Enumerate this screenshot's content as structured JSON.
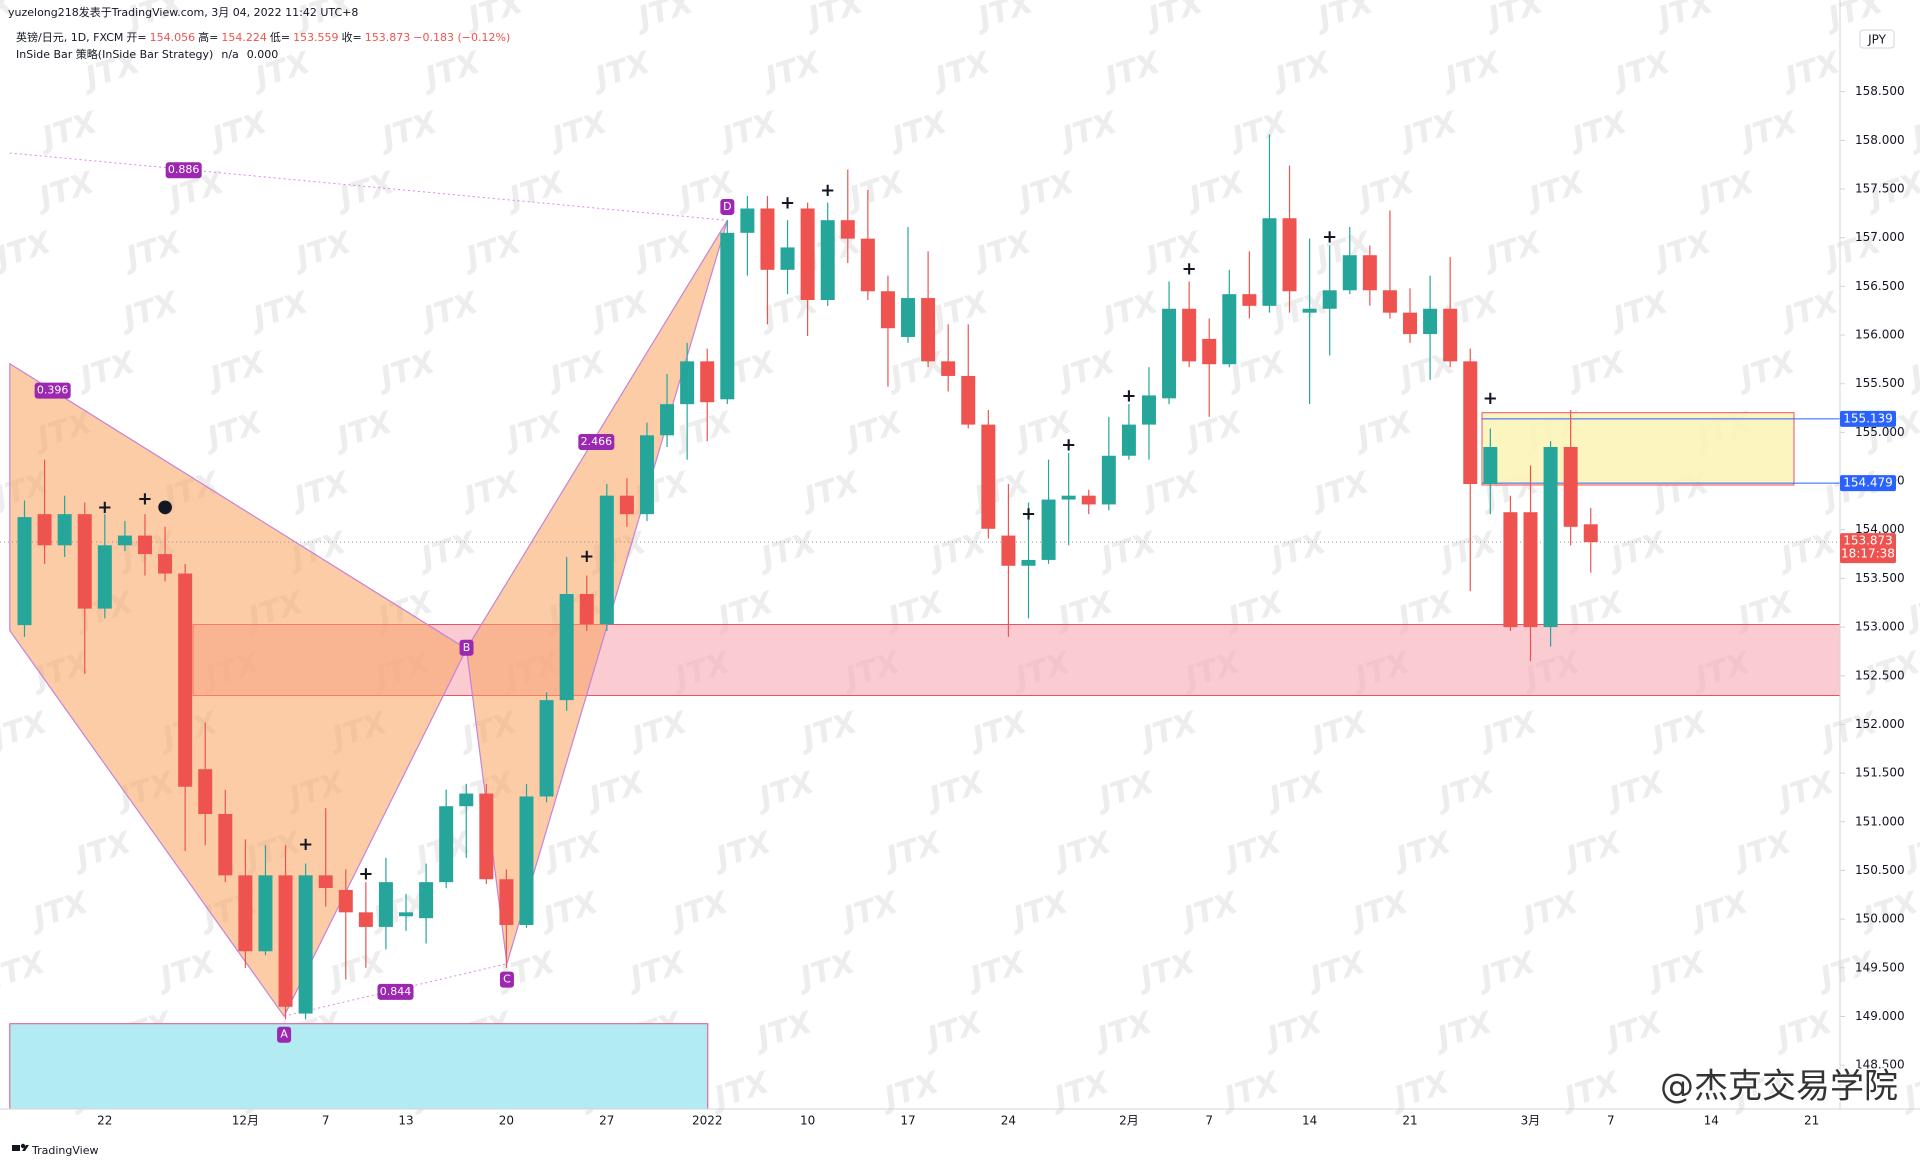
{
  "header": {
    "author_line": "yuzelong218发表于TradingView.com, 3月 04, 2022 11:42 UTC+8",
    "symbol": "英镑/日元, 1D, FXCM",
    "ohlc_labels": [
      "开=",
      "高=",
      "低=",
      "收="
    ],
    "change": "−0.183 (−0.12%)",
    "indicator": "InSide Bar 策略(InSide Bar Strategy)",
    "indicator_values": [
      "n/a",
      "0.000"
    ],
    "currency": "JPY"
  },
  "chart_data": {
    "type": "candlestick",
    "categories": [
      null,
      null,
      null,
      null,
      "22",
      null,
      null,
      null,
      null,
      null,
      null,
      "12月",
      null,
      null,
      null,
      "7",
      null,
      null,
      null,
      "13",
      null,
      null,
      null,
      null,
      "20",
      null,
      null,
      null,
      null,
      "27",
      null,
      null,
      null,
      null,
      "2022",
      null,
      null,
      null,
      null,
      "10",
      null,
      null,
      null,
      null,
      "17",
      null,
      null,
      null,
      null,
      "24",
      null,
      null,
      null,
      null,
      null,
      "2月",
      null,
      null,
      null,
      "7",
      null,
      null,
      null,
      null,
      "14",
      null,
      null,
      null,
      null,
      "21",
      null,
      null,
      null,
      null,
      null,
      "3月",
      null,
      null,
      null,
      "7",
      null,
      null,
      null,
      null,
      "14",
      null,
      null,
      null,
      null,
      "21"
    ],
    "open": [
      153.02,
      154.16,
      153.84,
      154.16,
      153.19,
      153.84,
      153.94,
      153.75,
      153.55,
      151.54,
      151.08,
      150.45,
      149.67,
      150.45,
      149.03,
      150.45,
      150.3,
      150.07,
      149.92,
      150.03,
      150.01,
      150.38,
      151.16,
      151.29,
      150.41,
      149.94,
      151.26,
      152.25,
      153.34,
      153.03,
      154.35,
      154.16,
      154.97,
      155.29,
      155.73,
      155.34,
      157.05,
      157.3,
      156.67,
      157.3,
      156.36,
      157.18,
      156.99,
      156.45,
      155.98,
      156.38,
      155.73,
      155.58,
      155.08,
      153.94,
      153.63,
      153.69,
      154.31,
      154.35,
      154.26,
      154.76,
      155.08,
      155.35,
      156.27,
      155.96,
      155.7,
      156.42,
      156.3,
      157.2,
      156.23,
      156.27,
      156.46,
      156.82,
      156.46,
      156.23,
      156.01,
      156.27,
      155.73,
      154.47,
      154.18,
      154.18,
      153.0,
      154.85,
      154.056,
      null,
      null,
      null,
      null,
      null,
      null,
      null,
      null,
      null,
      null,
      null
    ],
    "high": [
      154.3,
      154.72,
      154.35,
      154.28,
      154.16,
      154.09,
      154.16,
      154.03,
      153.65,
      152.02,
      151.33,
      150.82,
      150.76,
      150.76,
      150.57,
      151.14,
      150.51,
      150.38,
      150.63,
      150.26,
      150.57,
      151.33,
      151.39,
      151.39,
      150.51,
      151.39,
      152.33,
      153.72,
      153.53,
      154.47,
      154.53,
      155.1,
      155.6,
      155.92,
      155.86,
      157.18,
      157.43,
      157.43,
      157.18,
      157.36,
      157.36,
      157.7,
      157.49,
      156.61,
      157.11,
      156.86,
      156.11,
      156.11,
      155.23,
      154.47,
      154.28,
      154.72,
      154.79,
      154.41,
      155.16,
      155.29,
      155.67,
      156.55,
      156.55,
      156.17,
      156.67,
      156.86,
      158.06,
      157.74,
      156.99,
      156.92,
      157.11,
      156.92,
      157.28,
      156.48,
      156.61,
      156.8,
      155.86,
      155.04,
      154.35,
      154.66,
      154.91,
      155.23,
      154.224,
      null,
      null,
      null,
      null,
      null,
      null,
      null,
      null,
      null,
      null,
      null
    ],
    "low": [
      152.9,
      153.65,
      153.72,
      152.52,
      153.09,
      153.78,
      153.53,
      153.47,
      150.7,
      150.76,
      150.38,
      149.5,
      149.63,
      148.97,
      148.97,
      150.13,
      149.38,
      149.5,
      149.69,
      149.88,
      149.75,
      150.32,
      150.63,
      150.36,
      149.5,
      149.91,
      151.2,
      152.14,
      152.96,
      152.96,
      154.03,
      154.09,
      154.85,
      154.72,
      154.91,
      155.29,
      156.61,
      156.11,
      156.42,
      155.99,
      156.3,
      156.74,
      156.36,
      155.47,
      155.92,
      155.67,
      155.42,
      155.04,
      153.91,
      152.9,
      153.09,
      153.65,
      153.84,
      154.16,
      154.2,
      154.72,
      154.72,
      155.29,
      155.67,
      155.16,
      155.67,
      156.17,
      156.23,
      156.23,
      155.29,
      155.79,
      156.42,
      156.3,
      156.17,
      155.92,
      155.54,
      155.67,
      153.37,
      154.16,
      152.96,
      152.65,
      152.8,
      153.84,
      153.559,
      null,
      null,
      null,
      null,
      null,
      null,
      null,
      null,
      null,
      null,
      null
    ],
    "close": [
      154.13,
      153.84,
      154.16,
      153.19,
      153.84,
      153.94,
      153.75,
      153.55,
      151.36,
      151.08,
      150.45,
      149.67,
      150.45,
      149.1,
      150.45,
      150.32,
      150.07,
      149.92,
      150.38,
      150.07,
      150.38,
      151.16,
      151.29,
      150.41,
      149.94,
      151.26,
      152.25,
      153.34,
      153.03,
      154.35,
      154.16,
      154.97,
      155.29,
      155.73,
      155.31,
      157.05,
      157.3,
      156.67,
      156.9,
      156.36,
      157.18,
      156.99,
      156.45,
      156.07,
      156.38,
      155.73,
      155.58,
      155.08,
      154.01,
      153.63,
      153.69,
      154.31,
      154.35,
      154.26,
      154.76,
      155.08,
      155.38,
      156.27,
      155.73,
      155.7,
      156.42,
      156.3,
      157.2,
      156.45,
      156.27,
      156.46,
      156.82,
      156.46,
      156.23,
      156.01,
      156.27,
      155.73,
      154.47,
      154.85,
      153.0,
      153.0,
      154.85,
      154.03,
      153.873,
      null,
      null,
      null,
      null,
      null,
      null,
      null,
      null,
      null,
      null,
      null
    ],
    "up_color": "#26a69a",
    "down_color": "#ef5350",
    "ylim": [
      148.06,
      159.19
    ],
    "yticks": [
      {
        "value": 148.5,
        "label": "148.500"
      },
      {
        "value": 149,
        "label": "149.000"
      },
      {
        "value": 149.5,
        "label": "149.500"
      },
      {
        "value": 150,
        "label": "150.000"
      },
      {
        "value": 150.5,
        "label": "150.500"
      },
      {
        "value": 151,
        "label": "151.000"
      },
      {
        "value": 151.5,
        "label": "151.500"
      },
      {
        "value": 152,
        "label": "152.000"
      },
      {
        "value": 152.5,
        "label": "152.500"
      },
      {
        "value": 153,
        "label": "153.000"
      },
      {
        "value": 153.5,
        "label": "153.500"
      },
      {
        "value": 154,
        "label": "154.000"
      },
      {
        "value": 154.5,
        "label": "154.500"
      },
      {
        "value": 155,
        "label": "155.000"
      },
      {
        "value": 155.5,
        "label": "155.500"
      },
      {
        "value": 156,
        "label": "156.000"
      },
      {
        "value": 156.5,
        "label": "156.500"
      },
      {
        "value": 157,
        "label": "157.000"
      },
      {
        "value": 157.5,
        "label": "157.500"
      },
      {
        "value": 158,
        "label": "158.000"
      },
      {
        "value": 158.5,
        "label": "158.500"
      }
    ],
    "grid": false,
    "price_lines": [
      {
        "value": 155.139,
        "color": "#2962ff"
      },
      {
        "value": 154.479,
        "color": "#2962ff"
      }
    ],
    "countdown": "18:17:38",
    "pattern_ratios": [
      "0.886",
      "0.396",
      "2.466",
      "0.844"
    ],
    "pattern_points": [
      "A",
      "B",
      "C",
      "D"
    ],
    "markers": [
      "+",
      "+",
      "●",
      "+",
      "+",
      "+",
      "+",
      "+",
      "+",
      "+",
      "+",
      "+",
      "+",
      "+"
    ],
    "watermark": "JTX"
  },
  "footer": {
    "brand": "TradingView",
    "channel": "@杰克交易学院"
  }
}
